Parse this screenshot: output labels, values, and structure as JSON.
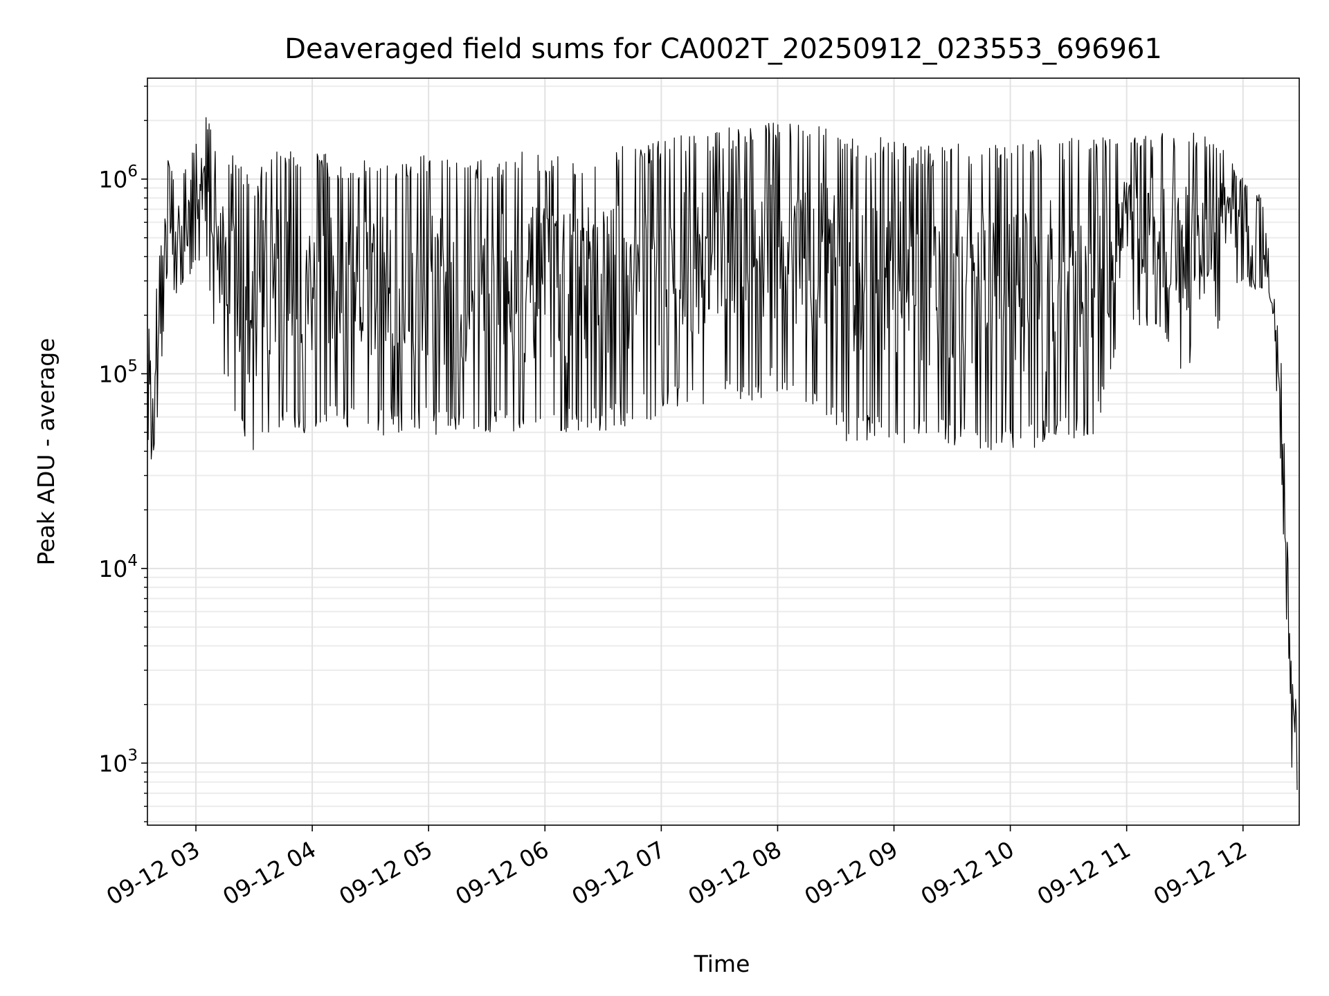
{
  "chart_data": {
    "type": "line",
    "title": "Deaveraged field sums for CA002T_20250912_023553_696961",
    "xlabel": "Time",
    "ylabel": "Peak ADU - average",
    "y_scale": "log",
    "ylim": [
      480,
      3300000
    ],
    "xlim": [
      "2025-09-12 02:35",
      "2025-09-12 12:29"
    ],
    "grid": true,
    "line_color": "#000000",
    "x_ticks": [
      {
        "label": "09-12 03",
        "time": "2025-09-12 03:00"
      },
      {
        "label": "09-12 04",
        "time": "2025-09-12 04:00"
      },
      {
        "label": "09-12 05",
        "time": "2025-09-12 05:00"
      },
      {
        "label": "09-12 06",
        "time": "2025-09-12 06:00"
      },
      {
        "label": "09-12 07",
        "time": "2025-09-12 07:00"
      },
      {
        "label": "09-12 08",
        "time": "2025-09-12 08:00"
      },
      {
        "label": "09-12 09",
        "time": "2025-09-12 09:00"
      },
      {
        "label": "09-12 10",
        "time": "2025-09-12 10:00"
      },
      {
        "label": "09-12 11",
        "time": "2025-09-12 11:00"
      },
      {
        "label": "09-12 12",
        "time": "2025-09-12 12:00"
      }
    ],
    "y_ticks": [
      {
        "base": "10",
        "exp": "3",
        "value": 1000
      },
      {
        "base": "10",
        "exp": "4",
        "value": 10000
      },
      {
        "base": "10",
        "exp": "5",
        "value": 100000
      },
      {
        "base": "10",
        "exp": "6",
        "value": 1000000
      }
    ],
    "series": [
      {
        "x": [
          "2025-09-12 02:35",
          "2025-09-12 02:40",
          "2025-09-12 02:45",
          "2025-09-12 02:50",
          "2025-09-12 02:55",
          "2025-09-12 03:00",
          "2025-09-12 03:05",
          "2025-09-12 03:10",
          "2025-09-12 03:15",
          "2025-09-12 03:20",
          "2025-09-12 03:25",
          "2025-09-12 03:30",
          "2025-09-12 03:35",
          "2025-09-12 03:40",
          "2025-09-12 03:45",
          "2025-09-12 03:50",
          "2025-09-12 03:55",
          "2025-09-12 04:00",
          "2025-09-12 04:10",
          "2025-09-12 04:20",
          "2025-09-12 04:30",
          "2025-09-12 04:40",
          "2025-09-12 04:50",
          "2025-09-12 05:00",
          "2025-09-12 05:15",
          "2025-09-12 05:30",
          "2025-09-12 05:45",
          "2025-09-12 06:00",
          "2025-09-12 06:15",
          "2025-09-12 06:30",
          "2025-09-12 06:45",
          "2025-09-12 07:00",
          "2025-09-12 07:15",
          "2025-09-12 07:30",
          "2025-09-12 07:45",
          "2025-09-12 08:00",
          "2025-09-12 08:15",
          "2025-09-12 08:30",
          "2025-09-12 08:45",
          "2025-09-12 09:00",
          "2025-09-12 09:15",
          "2025-09-12 09:30",
          "2025-09-12 09:45",
          "2025-09-12 10:00",
          "2025-09-12 10:15",
          "2025-09-12 10:30",
          "2025-09-12 10:45",
          "2025-09-12 11:00",
          "2025-09-12 11:15",
          "2025-09-12 11:30",
          "2025-09-12 11:45",
          "2025-09-12 12:00",
          "2025-09-12 12:10",
          "2025-09-12 12:15",
          "2025-09-12 12:20",
          "2025-09-12 12:25",
          "2025-09-12 12:28"
        ],
        "high": [
          140000,
          500000,
          1400000,
          900000,
          1200000,
          1500000,
          2200000,
          1600000,
          1400000,
          1300000,
          1200000,
          800000,
          1300000,
          1400000,
          1500000,
          1500000,
          1300000,
          1500000,
          1300000,
          1200000,
          1400000,
          1300000,
          1300000,
          1400000,
          1300000,
          1300000,
          1400000,
          1400000,
          1300000,
          1500000,
          1500000,
          1600000,
          1800000,
          1800000,
          1900000,
          2000000,
          2200000,
          1800000,
          1700000,
          1600000,
          1500000,
          1600000,
          1500000,
          1500000,
          1600000,
          1700000,
          1700000,
          1800000,
          1700000,
          1800000,
          1800000,
          1000000,
          800000,
          300000,
          120000,
          3000,
          2000
        ],
        "low": [
          28000,
          50000,
          300000,
          250000,
          300000,
          350000,
          400000,
          150000,
          90000,
          60000,
          40000,
          38000,
          40000,
          45000,
          50000,
          50000,
          45000,
          50000,
          50000,
          50000,
          45000,
          50000,
          50000,
          50000,
          45000,
          50000,
          50000,
          50000,
          50000,
          50000,
          55000,
          60000,
          70000,
          70000,
          70000,
          80000,
          70000,
          45000,
          45000,
          45000,
          42000,
          42000,
          40000,
          40000,
          40000,
          42000,
          50000,
          200000,
          150000,
          100000,
          150000,
          300000,
          250000,
          200000,
          25000,
          900,
          700
        ]
      }
    ]
  }
}
